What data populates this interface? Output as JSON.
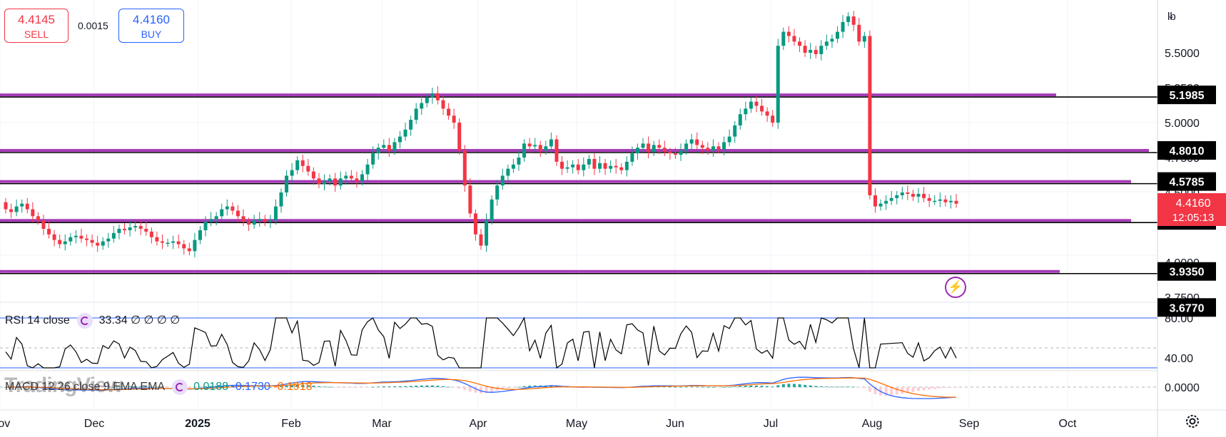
{
  "trade": {
    "sell_price": "4.4145",
    "sell_label": "SELL",
    "spread": "0.0015",
    "buy_price": "4.4160",
    "buy_label": "BUY"
  },
  "unit_selector": "lb",
  "price_axis_ticks": [
    "5.5000",
    "5.2500",
    "5.0000",
    "4.7500",
    "4.5000",
    "4.0000",
    "3.7500"
  ],
  "level_labels": [
    "5.1985",
    "4.8010",
    "4.5785",
    "4.3000",
    "3.9350",
    "3.6770"
  ],
  "current_price": {
    "value": "4.4160",
    "countdown": "12:05:13"
  },
  "time_axis": [
    "Nov",
    "Dec",
    "2025",
    "Feb",
    "Mar",
    "Apr",
    "May",
    "Jun",
    "Jul",
    "Aug",
    "Sep",
    "Oct"
  ],
  "rsi": {
    "legend_name": "RSI 14 close",
    "legend_value": "33.34",
    "legend_extra": "∅ ∅ ∅ ∅",
    "axis_ticks": [
      "80.00",
      "40.00"
    ]
  },
  "macd": {
    "legend_name": "MACD 12 26 close 9 EMA EMA",
    "hist_value": "0.0188",
    "macd_value": "-0.1730",
    "signal_value": "-0.1918",
    "axis_ticks": [
      "0.0000"
    ]
  },
  "watermark": "TradingView",
  "colors": {
    "up": "#089981",
    "down": "#f23645",
    "level_line": "#9c27b0",
    "rsi_band": "#2962ff",
    "macd_line": "#2962ff",
    "signal_line": "#ff6d00"
  },
  "chart_data": {
    "type": "candlestick",
    "levels": [
      5.1985,
      4.801,
      4.5785,
      4.3,
      3.935,
      3.677
    ],
    "closes": [
      4.38,
      4.36,
      4.4,
      4.42,
      4.38,
      4.33,
      4.3,
      4.24,
      4.2,
      4.16,
      4.13,
      4.15,
      4.18,
      4.19,
      4.17,
      4.16,
      4.14,
      4.12,
      4.15,
      4.17,
      4.21,
      4.24,
      4.23,
      4.25,
      4.26,
      4.24,
      4.22,
      4.18,
      4.15,
      4.14,
      4.14,
      4.15,
      4.13,
      4.1,
      4.08,
      4.16,
      4.23,
      4.29,
      4.31,
      4.33,
      4.38,
      4.4,
      4.37,
      4.33,
      4.29,
      4.27,
      4.3,
      4.31,
      4.29,
      4.3,
      4.4,
      4.5,
      4.62,
      4.66,
      4.73,
      4.69,
      4.65,
      4.6,
      4.56,
      4.58,
      4.6,
      4.55,
      4.6,
      4.62,
      4.6,
      4.58,
      4.63,
      4.7,
      4.78,
      4.82,
      4.84,
      4.8,
      4.86,
      4.9,
      4.95,
      5.02,
      5.1,
      5.14,
      5.18,
      5.21,
      5.16,
      5.1,
      5.05,
      5.0,
      4.8,
      4.55,
      4.35,
      4.2,
      4.12,
      4.3,
      4.45,
      4.55,
      4.62,
      4.67,
      4.7,
      4.75,
      4.85,
      4.83,
      4.84,
      4.8,
      4.83,
      4.88,
      4.72,
      4.67,
      4.68,
      4.7,
      4.66,
      4.7,
      4.74,
      4.67,
      4.71,
      4.67,
      4.69,
      4.68,
      4.66,
      4.72,
      4.78,
      4.82,
      4.85,
      4.79,
      4.84,
      4.82,
      4.79,
      4.78,
      4.77,
      4.8,
      4.85,
      4.88,
      4.84,
      4.82,
      4.8,
      4.83,
      4.81,
      4.86,
      4.9,
      4.98,
      5.06,
      5.1,
      5.15,
      5.12,
      5.08,
      5.05,
      5.0,
      5.55,
      5.65,
      5.62,
      5.58,
      5.55,
      5.5,
      5.52,
      5.49,
      5.55,
      5.58,
      5.6,
      5.65,
      5.72,
      5.76,
      5.7,
      5.58,
      5.62,
      4.48,
      4.4,
      4.42,
      4.44,
      4.46,
      4.48,
      4.5,
      4.49,
      4.47,
      4.49,
      4.46,
      4.44,
      4.44,
      4.45,
      4.43,
      4.44,
      4.42
    ]
  }
}
